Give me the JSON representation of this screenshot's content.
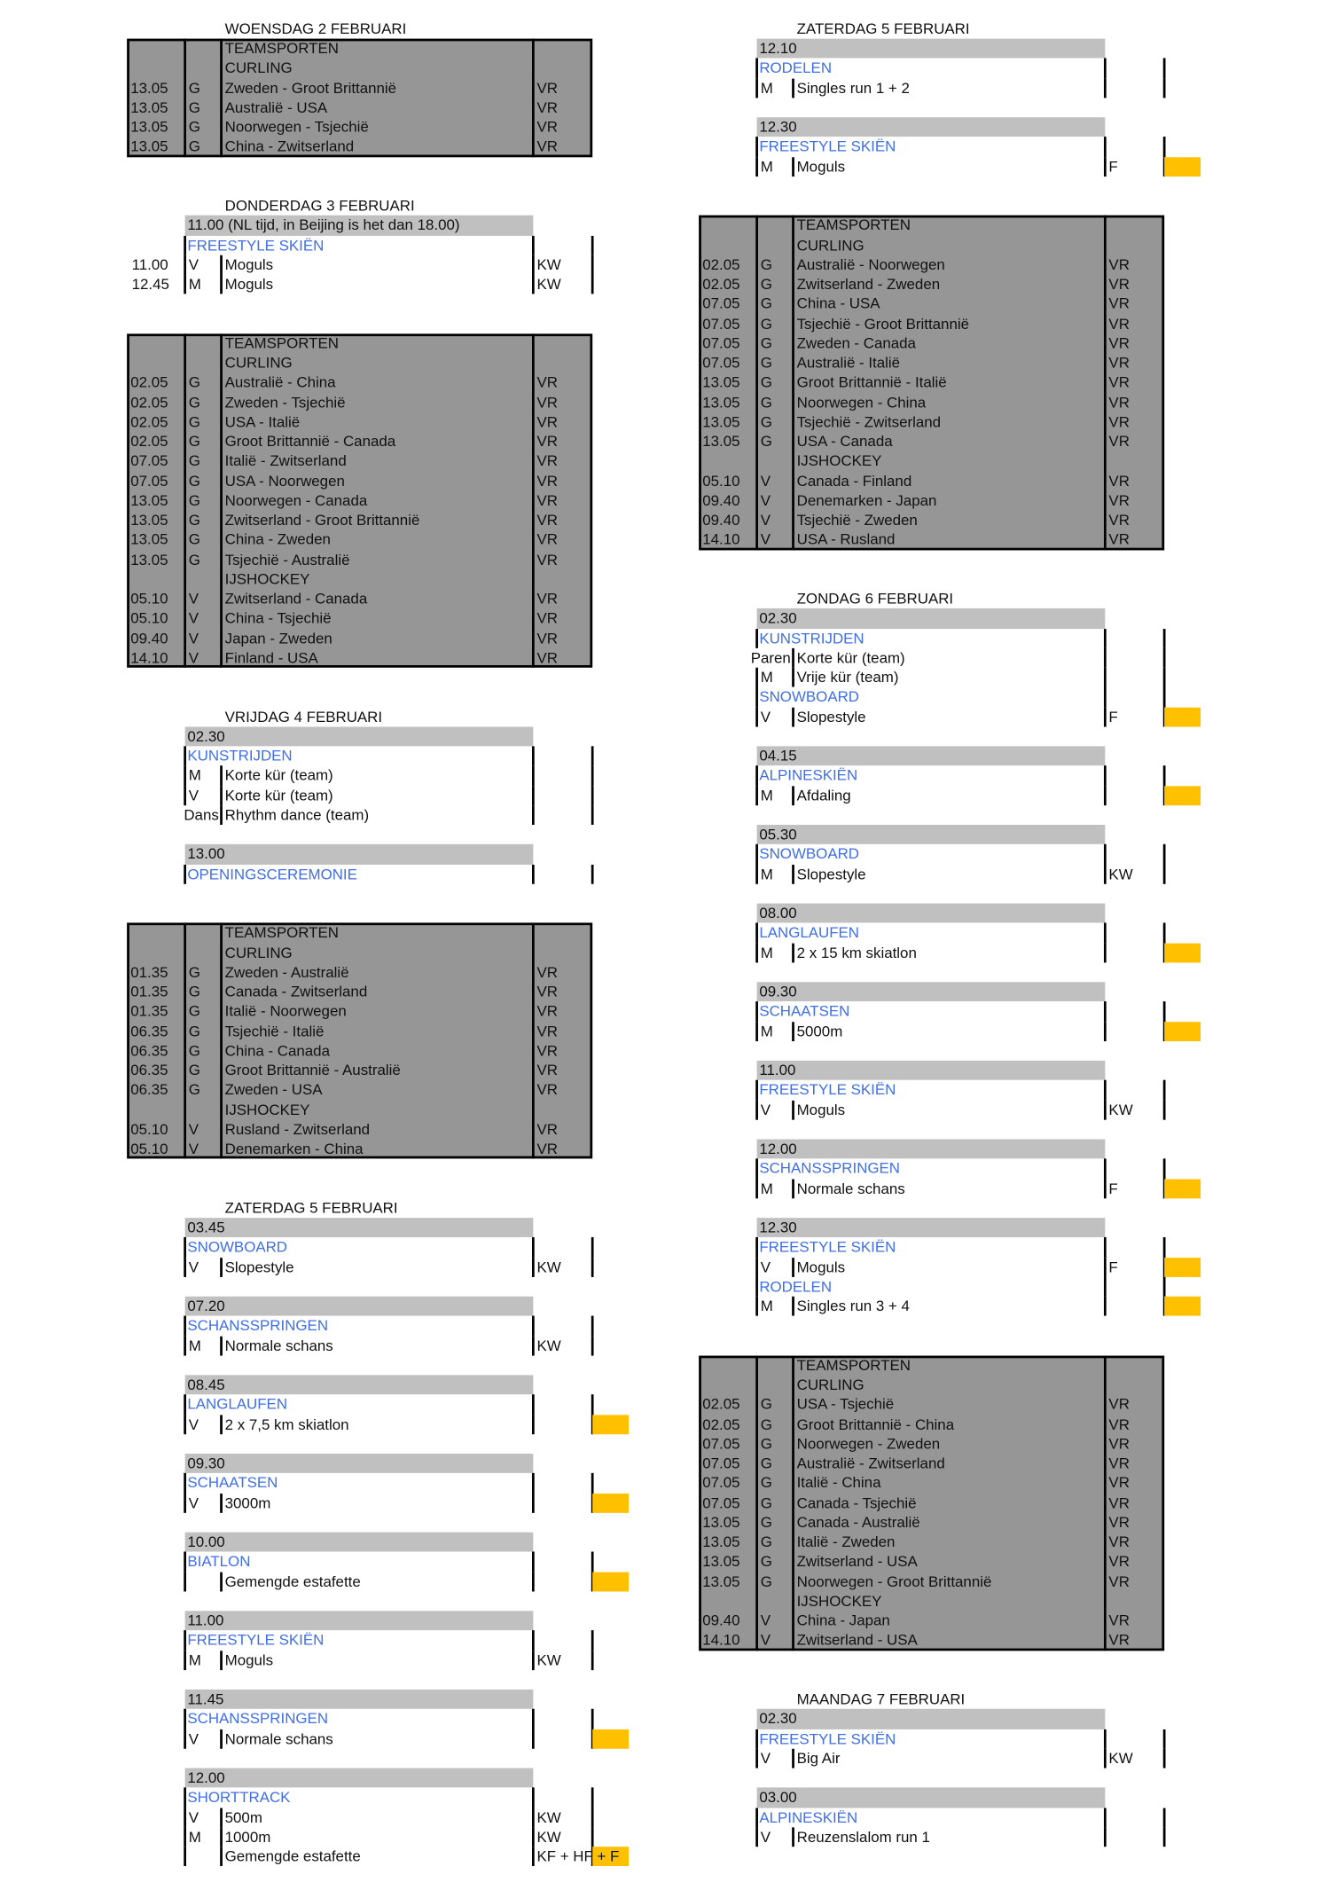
{
  "colors": {
    "session_header": "#c0c0c0",
    "team_block": "#969696",
    "sport_label": "#3f6ee6",
    "medal_marker": "#ffc000"
  },
  "columns": [
    {
      "blocks": [
        {
          "type": "day",
          "title": "WOENSDAG 2 FEBRUARI"
        },
        {
          "type": "team",
          "rows": [
            {
              "label": "TEAMSPORTEN"
            },
            {
              "label": "CURLING"
            },
            {
              "time": "13.05",
              "g": "G",
              "match": "Zweden - Groot Brittannië",
              "result": "VR"
            },
            {
              "time": "13.05",
              "g": "G",
              "match": "Australië - USA",
              "result": "VR"
            },
            {
              "time": "13.05",
              "g": "G",
              "match": "Noorwegen - Tsjechië",
              "result": "VR"
            },
            {
              "time": "13.05",
              "g": "G",
              "match": "China - Zwitserland",
              "result": "VR"
            }
          ]
        },
        {
          "type": "day",
          "title": "DONDERDAG 3 FEBRUARI"
        },
        {
          "type": "session",
          "time": "11.00 (NL tijd, in Beijing is het dan 18.00)",
          "rows": [
            {
              "sport": "FREESTYLE SKIËN"
            },
            {
              "time": "11.00",
              "g": "V",
              "event": "Moguls",
              "result": "KW",
              "medal": false
            },
            {
              "time": "12.45",
              "g": "M",
              "event": "Moguls",
              "result": "KW",
              "medal": false
            }
          ]
        },
        {
          "type": "team",
          "rows": [
            {
              "label": "TEAMSPORTEN"
            },
            {
              "label": "CURLING"
            },
            {
              "time": "02.05",
              "g": "G",
              "match": "Australië - China",
              "result": "VR"
            },
            {
              "time": "02.05",
              "g": "G",
              "match": "Zweden - Tsjechië",
              "result": "VR"
            },
            {
              "time": "02.05",
              "g": "G",
              "match": "USA - Italië",
              "result": "VR"
            },
            {
              "time": "02.05",
              "g": "G",
              "match": "Groot Brittannië - Canada",
              "result": "VR"
            },
            {
              "time": "07.05",
              "g": "G",
              "match": "Italië - Zwitserland",
              "result": "VR"
            },
            {
              "time": "07.05",
              "g": "G",
              "match": "USA - Noorwegen",
              "result": "VR"
            },
            {
              "time": "13.05",
              "g": "G",
              "match": "Noorwegen - Canada",
              "result": "VR"
            },
            {
              "time": "13.05",
              "g": "G",
              "match": "Zwitserland - Groot Brittannië",
              "result": "VR"
            },
            {
              "time": "13.05",
              "g": "G",
              "match": "China - Zweden",
              "result": "VR"
            },
            {
              "time": "13.05",
              "g": "G",
              "match": "Tsjechië - Australië",
              "result": "VR"
            },
            {
              "label": "IJSHOCKEY"
            },
            {
              "time": "05.10",
              "g": "V",
              "match": "Zwitserland - Canada",
              "result": "VR"
            },
            {
              "time": "05.10",
              "g": "V",
              "match": "China - Tsjechië",
              "result": "VR"
            },
            {
              "time": "09.40",
              "g": "V",
              "match": "Japan - Zweden",
              "result": "VR"
            },
            {
              "time": "14.10",
              "g": "V",
              "match": "Finland - USA",
              "result": "VR"
            }
          ]
        },
        {
          "type": "day",
          "title": "VRIJDAG 4 FEBRUARI"
        },
        {
          "type": "session",
          "time": "02.30",
          "rows": [
            {
              "sport": "KUNSTRIJDEN"
            },
            {
              "g": "M",
              "event": "Korte kür (team)",
              "result": "",
              "medal": false
            },
            {
              "g": "V",
              "event": "Korte kür (team)",
              "result": "",
              "medal": false
            },
            {
              "g": "Dans",
              "event": "Rhythm dance (team)",
              "result": "",
              "medal": false
            }
          ]
        },
        {
          "type": "session",
          "time": "13.00",
          "rows": [
            {
              "sport": "OPENINGSCEREMONIE"
            }
          ]
        },
        {
          "type": "team",
          "rows": [
            {
              "label": "TEAMSPORTEN"
            },
            {
              "label": "CURLING"
            },
            {
              "time": "01.35",
              "g": "G",
              "match": "Zweden - Australië",
              "result": "VR"
            },
            {
              "time": "01.35",
              "g": "G",
              "match": "Canada - Zwitserland",
              "result": "VR"
            },
            {
              "time": "01.35",
              "g": "G",
              "match": "Italië - Noorwegen",
              "result": "VR"
            },
            {
              "time": "06.35",
              "g": "G",
              "match": "Tsjechië - Italië",
              "result": "VR"
            },
            {
              "time": "06.35",
              "g": "G",
              "match": "China - Canada",
              "result": "VR"
            },
            {
              "time": "06.35",
              "g": "G",
              "match": "Groot Brittannië - Australië",
              "result": "VR"
            },
            {
              "time": "06.35",
              "g": "G",
              "match": "Zweden - USA",
              "result": "VR"
            },
            {
              "label": "IJSHOCKEY"
            },
            {
              "time": "05.10",
              "g": "V",
              "match": "Rusland - Zwitserland",
              "result": "VR"
            },
            {
              "time": "05.10",
              "g": "V",
              "match": "Denemarken - China",
              "result": "VR"
            }
          ]
        },
        {
          "type": "day",
          "title": "ZATERDAG 5 FEBRUARI"
        },
        {
          "type": "session",
          "time": "03.45",
          "rows": [
            {
              "sport": "SNOWBOARD"
            },
            {
              "g": "V",
              "event": "Slopestyle",
              "result": "KW",
              "medal": false
            }
          ]
        },
        {
          "type": "session",
          "time": "07.20",
          "rows": [
            {
              "sport": "SCHANSSPRINGEN"
            },
            {
              "g": "M",
              "event": "Normale schans",
              "result": "KW",
              "medal": false
            }
          ]
        },
        {
          "type": "session",
          "time": "08.45",
          "rows": [
            {
              "sport": "LANGLAUFEN"
            },
            {
              "g": "V",
              "event": "2 x 7,5 km skiatlon",
              "result": "",
              "medal": true
            }
          ]
        },
        {
          "type": "session",
          "time": "09.30",
          "rows": [
            {
              "sport": "SCHAATSEN"
            },
            {
              "g": "V",
              "event": "3000m",
              "result": "",
              "medal": true
            }
          ]
        },
        {
          "type": "session",
          "time": "10.00",
          "rows": [
            {
              "sport": "BIATLON"
            },
            {
              "g": "",
              "event": "Gemengde estafette",
              "result": "",
              "medal": true
            }
          ]
        },
        {
          "type": "session",
          "time": "11.00",
          "rows": [
            {
              "sport": "FREESTYLE SKIËN"
            },
            {
              "g": "M",
              "event": "Moguls",
              "result": "KW",
              "medal": false
            }
          ]
        },
        {
          "type": "session",
          "time": "11.45",
          "rows": [
            {
              "sport": "SCHANSSPRINGEN"
            },
            {
              "g": "V",
              "event": "Normale schans",
              "result": "",
              "medal": true
            }
          ]
        },
        {
          "type": "session",
          "time": "12.00",
          "rows": [
            {
              "sport": "SHORTTRACK"
            },
            {
              "g": "V",
              "event": "500m",
              "result": "KW",
              "medal": false
            },
            {
              "g": "M",
              "event": "1000m",
              "result": "KW",
              "medal": false
            },
            {
              "g": "",
              "event": "Gemengde estafette",
              "result": "KF + HF + F",
              "medal": true
            }
          ]
        }
      ]
    },
    {
      "blocks": [
        {
          "type": "day",
          "title": "ZATERDAG 5 FEBRUARI"
        },
        {
          "type": "session",
          "time": "12.10",
          "rows": [
            {
              "sport": "RODELEN"
            },
            {
              "g": "M",
              "event": "Singles run 1 + 2",
              "result": "",
              "medal": false
            }
          ]
        },
        {
          "type": "session",
          "time": "12.30",
          "rows": [
            {
              "sport": "FREESTYLE SKIËN"
            },
            {
              "g": "M",
              "event": "Moguls",
              "result": "F",
              "medal": true
            }
          ]
        },
        {
          "type": "team",
          "rows": [
            {
              "label": "TEAMSPORTEN"
            },
            {
              "label": "CURLING"
            },
            {
              "time": "02.05",
              "g": "G",
              "match": "Australië - Noorwegen",
              "result": "VR"
            },
            {
              "time": "02.05",
              "g": "G",
              "match": "Zwitserland - Zweden",
              "result": "VR"
            },
            {
              "time": "07.05",
              "g": "G",
              "match": "China - USA",
              "result": "VR"
            },
            {
              "time": "07.05",
              "g": "G",
              "match": "Tsjechië - Groot Brittannië",
              "result": "VR"
            },
            {
              "time": "07.05",
              "g": "G",
              "match": "Zweden - Canada",
              "result": "VR"
            },
            {
              "time": "07.05",
              "g": "G",
              "match": "Australië - Italië",
              "result": "VR"
            },
            {
              "time": "13.05",
              "g": "G",
              "match": "Groot Brittannië - Italië",
              "result": "VR"
            },
            {
              "time": "13.05",
              "g": "G",
              "match": "Noorwegen - China",
              "result": "VR"
            },
            {
              "time": "13.05",
              "g": "G",
              "match": "Tsjechië - Zwitserland",
              "result": "VR"
            },
            {
              "time": "13.05",
              "g": "G",
              "match": "USA - Canada",
              "result": "VR"
            },
            {
              "label": "IJSHOCKEY"
            },
            {
              "time": "05.10",
              "g": "V",
              "match": "Canada - Finland",
              "result": "VR"
            },
            {
              "time": "09.40",
              "g": "V",
              "match": "Denemarken - Japan",
              "result": "VR"
            },
            {
              "time": "09.40",
              "g": "V",
              "match": "Tsjechië - Zweden",
              "result": "VR"
            },
            {
              "time": "14.10",
              "g": "V",
              "match": "USA - Rusland",
              "result": "VR"
            }
          ]
        },
        {
          "type": "day",
          "title": "ZONDAG 6 FEBRUARI"
        },
        {
          "type": "session",
          "time": "02.30",
          "rows": [
            {
              "sport": "KUNSTRIJDEN"
            },
            {
              "g": "Paren",
              "event": "Korte kür (team)",
              "result": "",
              "medal": false
            },
            {
              "g": "M",
              "event": "Vrije kür (team)",
              "result": "",
              "medal": false
            },
            {
              "sport": "SNOWBOARD"
            },
            {
              "g": "V",
              "event": "Slopestyle",
              "result": "F",
              "medal": true
            }
          ]
        },
        {
          "type": "session",
          "time": "04.15",
          "rows": [
            {
              "sport": "ALPINESKIËN"
            },
            {
              "g": "M",
              "event": "Afdaling",
              "result": "",
              "medal": true
            }
          ]
        },
        {
          "type": "session",
          "time": "05.30",
          "rows": [
            {
              "sport": "SNOWBOARD"
            },
            {
              "g": "M",
              "event": "Slopestyle",
              "result": "KW",
              "medal": false
            }
          ]
        },
        {
          "type": "session",
          "time": "08.00",
          "rows": [
            {
              "sport": "LANGLAUFEN"
            },
            {
              "g": "M",
              "event": "2 x 15 km skiatlon",
              "result": "",
              "medal": true
            }
          ]
        },
        {
          "type": "session",
          "time": "09.30",
          "rows": [
            {
              "sport": "SCHAATSEN"
            },
            {
              "g": "M",
              "event": "5000m",
              "result": "",
              "medal": true
            }
          ]
        },
        {
          "type": "session",
          "time": "11.00",
          "rows": [
            {
              "sport": "FREESTYLE SKIËN"
            },
            {
              "g": "V",
              "event": "Moguls",
              "result": "KW",
              "medal": false
            }
          ]
        },
        {
          "type": "session",
          "time": "12.00",
          "rows": [
            {
              "sport": "SCHANSSPRINGEN"
            },
            {
              "g": "M",
              "event": "Normale schans",
              "result": "F",
              "medal": true
            }
          ]
        },
        {
          "type": "session",
          "time": "12.30",
          "rows": [
            {
              "sport": "FREESTYLE SKIËN"
            },
            {
              "g": "V",
              "event": "Moguls",
              "result": "F",
              "medal": true
            },
            {
              "sport": "RODELEN"
            },
            {
              "g": "M",
              "event": "Singles run 3 + 4",
              "result": "",
              "medal": true
            }
          ]
        },
        {
          "type": "team",
          "rows": [
            {
              "label": "TEAMSPORTEN"
            },
            {
              "label": "CURLING"
            },
            {
              "time": "02.05",
              "g": "G",
              "match": "USA - Tsjechië",
              "result": "VR"
            },
            {
              "time": "02.05",
              "g": "G",
              "match": "Groot Brittannië - China",
              "result": "VR"
            },
            {
              "time": "07.05",
              "g": "G",
              "match": "Noorwegen - Zweden",
              "result": "VR"
            },
            {
              "time": "07.05",
              "g": "G",
              "match": "Australië - Zwitserland",
              "result": "VR"
            },
            {
              "time": "07.05",
              "g": "G",
              "match": "Italië - China",
              "result": "VR"
            },
            {
              "time": "07.05",
              "g": "G",
              "match": "Canada - Tsjechië",
              "result": "VR"
            },
            {
              "time": "13.05",
              "g": "G",
              "match": "Canada - Australië",
              "result": "VR"
            },
            {
              "time": "13.05",
              "g": "G",
              "match": "Italië - Zweden",
              "result": "VR"
            },
            {
              "time": "13.05",
              "g": "G",
              "match": "Zwitserland - USA",
              "result": "VR"
            },
            {
              "time": "13.05",
              "g": "G",
              "match": "Noorwegen - Groot Brittannië",
              "result": "VR"
            },
            {
              "label": "IJSHOCKEY"
            },
            {
              "time": "09.40",
              "g": "V",
              "match": "China - Japan",
              "result": "VR"
            },
            {
              "time": "14.10",
              "g": "V",
              "match": "Zwitserland - USA",
              "result": "VR"
            }
          ]
        },
        {
          "type": "day",
          "title": "MAANDAG 7 FEBRUARI"
        },
        {
          "type": "session",
          "time": "02.30",
          "rows": [
            {
              "sport": "FREESTYLE SKIËN"
            },
            {
              "g": "V",
              "event": "Big Air",
              "result": "KW",
              "medal": false
            }
          ]
        },
        {
          "type": "session",
          "time": "03.00",
          "rows": [
            {
              "sport": "ALPINESKIËN"
            },
            {
              "g": "V",
              "event": "Reuzenslalom run 1",
              "result": "",
              "medal": false
            }
          ]
        }
      ]
    }
  ]
}
